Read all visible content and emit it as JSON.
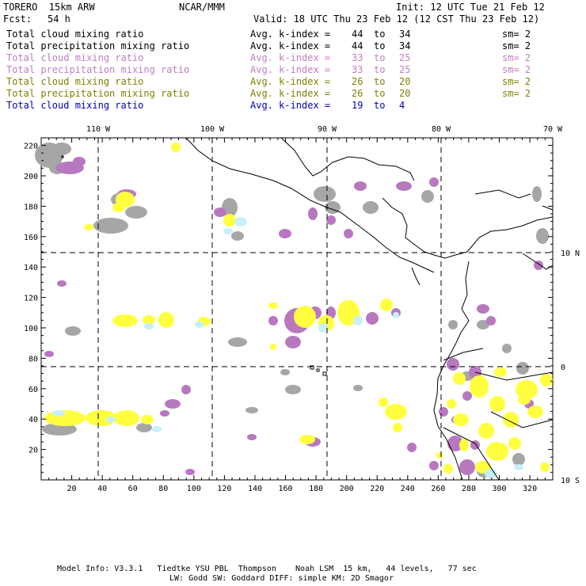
{
  "header": {
    "model": "TORERO  15km ARW",
    "org": "NCAR/MMM",
    "init": "Init: 12 UTC Tue 21 Feb 12",
    "fcst_label": "Fcst:",
    "fcst_value": "54 h",
    "valid": "Valid: 18 UTC Thu 23 Feb 12 (12 CST Thu 23 Feb 12)"
  },
  "fields": [
    {
      "name": "Total cloud mixing ratio",
      "kindex": "Avg. k-index = ",
      "from": "44",
      "to_word": "to",
      "to": "34",
      "sm": "sm= 2",
      "color": "#000000"
    },
    {
      "name": "Total precipitation mixing ratio",
      "kindex": "Avg. k-index = ",
      "from": "44",
      "to_word": "to",
      "to": "34",
      "sm": "sm= 2",
      "color": "#000000"
    },
    {
      "name": "Total cloud mixing ratio",
      "kindex": "Avg. k-index = ",
      "from": "33",
      "to_word": "to",
      "to": "25",
      "sm": "sm= 2",
      "color": "#c07fc0"
    },
    {
      "name": "Total precipitation mixing ratio",
      "kindex": "Avg. k-index = ",
      "from": "33",
      "to_word": "to",
      "to": "25",
      "sm": "sm= 2",
      "color": "#c07fc0"
    },
    {
      "name": "Total cloud mixing ratio",
      "kindex": "Avg. k-index = ",
      "from": "26",
      "to_word": "to",
      "to": "20",
      "sm": "sm= 2",
      "color": "#808000"
    },
    {
      "name": "Total precipitation mixing ratio",
      "kindex": "Avg. k-index = ",
      "from": "26",
      "to_word": "to",
      "to": "20",
      "sm": "sm= 2",
      "color": "#808000"
    },
    {
      "name": "Total cloud mixing ratio",
      "kindex": "Avg. k-index = ",
      "from": "19",
      "to_word": "to",
      "to": "4",
      "sm": "",
      "color": "#0000c0"
    }
  ],
  "map": {
    "lon_labels": [
      "110 W",
      "100 W",
      "90 W",
      "80 W",
      "70 W"
    ],
    "lat_labels": [
      "10 N",
      "0",
      "10 S"
    ],
    "x_ticks": [
      "20",
      "40",
      "60",
      "80",
      "100",
      "120",
      "140",
      "160",
      "180",
      "200",
      "220",
      "240",
      "260",
      "280",
      "300",
      "320"
    ],
    "y_ticks": [
      "20",
      "40",
      "60",
      "80",
      "100",
      "120",
      "140",
      "160",
      "180",
      "200",
      "220"
    ],
    "colors": {
      "gray": "#a6a6a6",
      "purple": "#b878c0",
      "yellow": "#ffff40",
      "cyan": "#c8f0f8"
    }
  },
  "footer": {
    "line1": "Model Info: V3.3.1   Tiedtke YSU PBL  Thompson    Noah LSM  15 km,   44 levels,   77 sec",
    "line2": "LW: Godd SW: Goddard DIFF: simple KM: 2D Smagor"
  }
}
